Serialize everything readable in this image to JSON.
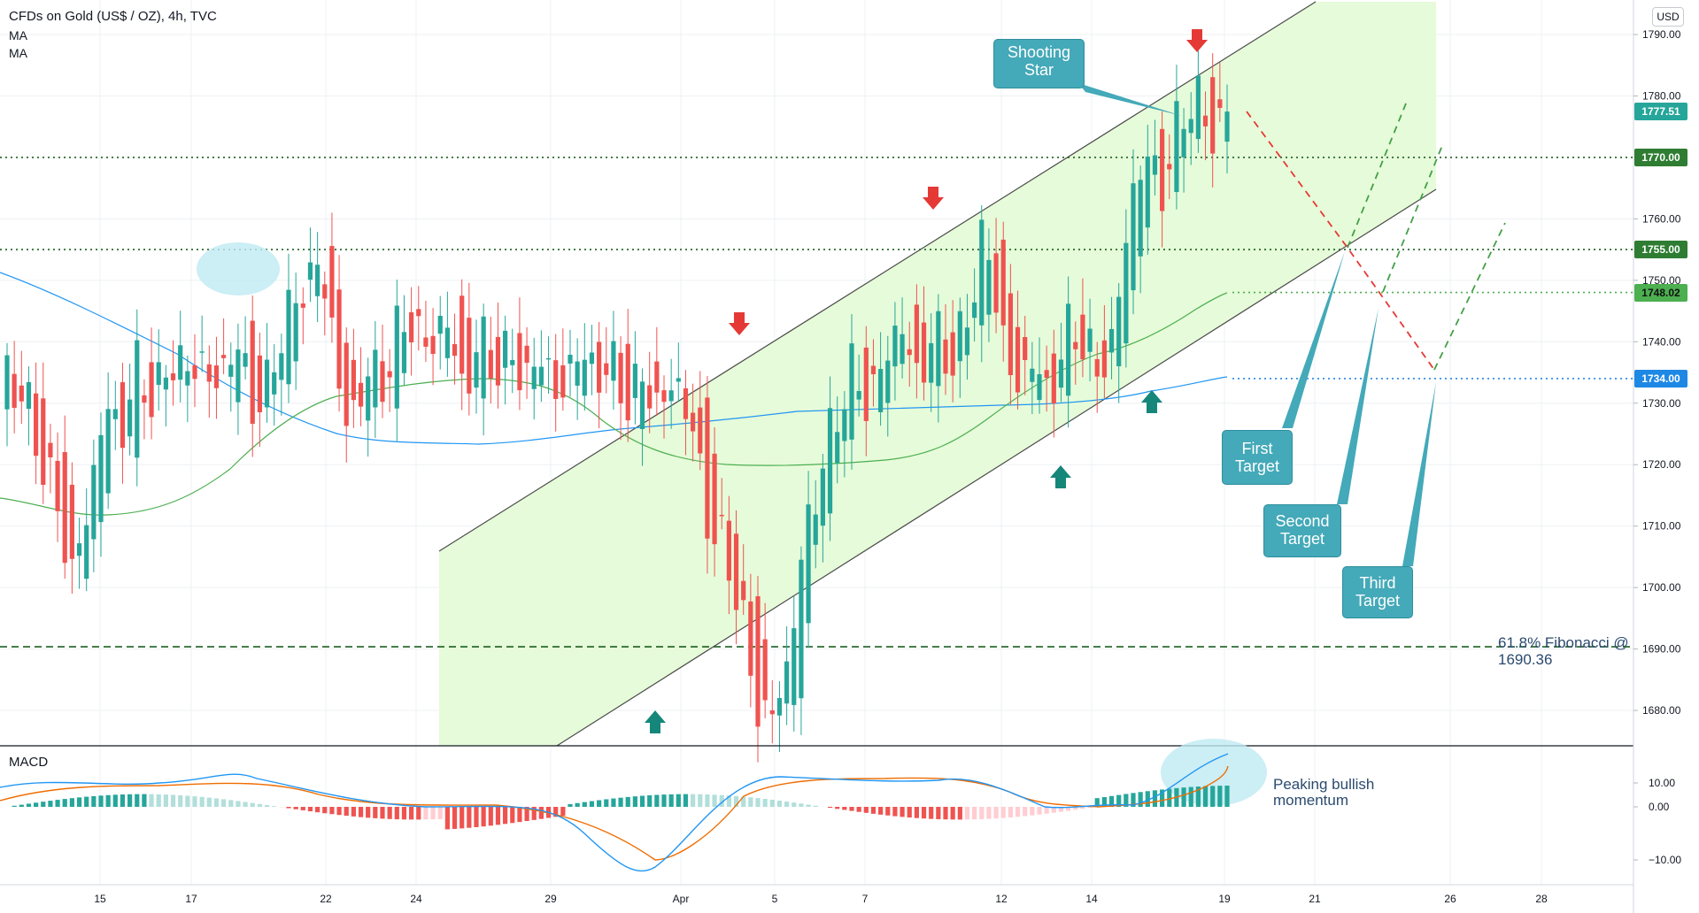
{
  "header": {
    "title": "CFDs on Gold (US$ / OZ), 4h, TVC",
    "indicator1": "MA",
    "indicator2": "MA",
    "currency": "USD"
  },
  "annotations": {
    "shooting_star": "Shooting Star",
    "first_target": "First Target",
    "second_target": "Second Target",
    "third_target": "Third Target",
    "fibonacci": "61.8% Fibonacci @ 1690.36",
    "peaking": "Peaking bullish momentum",
    "macd_label": "MACD"
  },
  "colors": {
    "up": "#26a69a",
    "down": "#ef5350",
    "ma_blue": "#2196f3",
    "ma_green": "#4caf50",
    "channel_fill": "#e6fbd9",
    "callout": "#44a9b8",
    "up_arrow": "#15867a",
    "down_arrow": "#e53935"
  },
  "chart_data": {
    "type": "candlestick",
    "y_axis": {
      "ticks": [
        "1790.00",
        "1780.00",
        "1760.00",
        "1750.00",
        "1740.00",
        "1730.00",
        "1720.00",
        "1710.00",
        "1700.00",
        "1690.00",
        "1680.00"
      ],
      "range": [
        1674,
        1795
      ]
    },
    "x_axis": {
      "ticks": [
        "15",
        "17",
        "22",
        "24",
        "29",
        "Apr",
        "5",
        "7",
        "12",
        "14",
        "19",
        "21",
        "26",
        "28"
      ]
    },
    "price_tags": [
      {
        "label": "1777.51",
        "value": 1777.51,
        "bg": "#26a69a",
        "fg": "#ffffff"
      },
      {
        "label": "1770.00",
        "value": 1770.0,
        "bg": "#2e7d32",
        "fg": "#ffffff"
      },
      {
        "label": "1755.00",
        "value": 1755.0,
        "bg": "#2e7d32",
        "fg": "#ffffff"
      },
      {
        "label": "1748.02",
        "value": 1748.02,
        "bg": "#4caf50",
        "fg": "#111111"
      },
      {
        "label": "1734.00",
        "value": 1734.0,
        "bg": "#1e88e5",
        "fg": "#ffffff"
      }
    ],
    "levels": [
      {
        "value": 1770,
        "style": "dotted",
        "color": "#1b5e20"
      },
      {
        "value": 1755,
        "style": "dotted",
        "color": "#1b5e20"
      },
      {
        "value": 1748.02,
        "style": "dotted",
        "color": "#4caf50"
      },
      {
        "value": 1734,
        "style": "dotted",
        "color": "#1e88e5"
      },
      {
        "value": 1690.36,
        "style": "dashed",
        "color": "#1b5e20"
      }
    ],
    "candle_keys": [
      [
        1,
        1727,
        1736,
        1735,
        1724
      ],
      [
        2,
        1735,
        1731,
        1739,
        1729
      ],
      [
        3,
        1731,
        1721,
        1733,
        1718
      ],
      [
        4,
        1721,
        1716,
        1725,
        1712
      ],
      [
        5,
        1716,
        1702,
        1718,
        1698
      ],
      [
        6,
        1702,
        1712,
        1715,
        1698
      ],
      [
        7,
        1712,
        1732,
        1734,
        1710
      ],
      [
        8,
        1732,
        1725,
        1736,
        1722
      ],
      [
        9,
        1725,
        1735,
        1738,
        1723
      ],
      [
        10,
        1735,
        1731,
        1740,
        1728
      ],
      [
        11,
        1731,
        1738,
        1742,
        1729
      ],
      [
        12,
        1738,
        1734,
        1744,
        1732
      ],
      [
        13,
        1734,
        1738,
        1742,
        1730
      ],
      [
        14,
        1738,
        1733,
        1741,
        1730
      ],
      [
        15,
        1733,
        1740,
        1743,
        1731
      ],
      [
        16,
        1740,
        1731,
        1741,
        1727
      ],
      [
        17,
        1731,
        1733,
        1737,
        1728
      ],
      [
        18,
        1733,
        1742,
        1745,
        1731
      ],
      [
        19,
        1742,
        1748,
        1753,
        1740
      ],
      [
        20,
        1748,
        1755,
        1756,
        1740
      ],
      [
        21,
        1755,
        1741,
        1756,
        1737
      ],
      [
        22,
        1741,
        1724,
        1743,
        1719
      ],
      [
        23,
        1724,
        1738,
        1742,
        1722
      ],
      [
        24,
        1738,
        1731,
        1744,
        1728
      ],
      [
        25,
        1731,
        1742,
        1747,
        1729
      ],
      [
        26,
        1742,
        1745,
        1750,
        1738
      ],
      [
        27,
        1745,
        1737,
        1748,
        1733
      ],
      [
        28,
        1737,
        1745,
        1748,
        1734
      ],
      [
        29,
        1745,
        1733,
        1747,
        1730
      ],
      [
        30,
        1733,
        1740,
        1745,
        1731
      ],
      [
        31,
        1740,
        1735,
        1744,
        1732
      ],
      [
        32,
        1735,
        1740,
        1746,
        1733
      ],
      [
        33,
        1740,
        1733,
        1742,
        1727
      ],
      [
        34,
        1733,
        1738,
        1742,
        1728
      ],
      [
        35,
        1738,
        1731,
        1740,
        1729
      ],
      [
        36,
        1731,
        1740,
        1745,
        1728
      ],
      [
        37,
        1740,
        1733,
        1743,
        1729
      ],
      [
        38,
        1733,
        1739,
        1742,
        1730
      ],
      [
        39,
        1739,
        1730,
        1741,
        1726
      ],
      [
        40,
        1730,
        1733,
        1736,
        1727
      ],
      [
        41,
        1733,
        1731,
        1736,
        1727
      ],
      [
        42,
        1731,
        1734,
        1737,
        1728
      ],
      [
        43,
        1734,
        1727,
        1736,
        1722
      ],
      [
        44,
        1727,
        1713,
        1729,
        1706
      ],
      [
        45,
        1713,
        1707,
        1716,
        1703
      ],
      [
        46,
        1707,
        1697,
        1709,
        1692
      ],
      [
        47,
        1697,
        1682,
        1699,
        1677
      ],
      [
        48,
        1682,
        1680,
        1685,
        1678
      ],
      [
        49,
        1680,
        1686,
        1689,
        1678
      ],
      [
        50,
        1686,
        1709,
        1711,
        1685
      ],
      [
        51,
        1709,
        1720,
        1722,
        1707
      ],
      [
        52,
        1720,
        1727,
        1733,
        1718
      ],
      [
        53,
        1727,
        1736,
        1739,
        1726
      ],
      [
        54,
        1736,
        1731,
        1739,
        1726
      ],
      [
        55,
        1731,
        1737,
        1742,
        1729
      ],
      [
        56,
        1737,
        1743,
        1748,
        1735
      ],
      [
        57,
        1743,
        1735,
        1746,
        1731
      ],
      [
        58,
        1735,
        1741,
        1745,
        1732
      ],
      [
        59,
        1741,
        1736,
        1744,
        1733
      ],
      [
        60,
        1736,
        1745,
        1751,
        1734
      ],
      [
        61,
        1745,
        1757,
        1758,
        1743
      ],
      [
        62,
        1757,
        1744,
        1758,
        1740
      ],
      [
        63,
        1744,
        1733,
        1746,
        1729
      ],
      [
        64,
        1733,
        1738,
        1741,
        1730
      ],
      [
        65,
        1738,
        1729,
        1740,
        1724
      ],
      [
        66,
        1729,
        1743,
        1747,
        1727
      ],
      [
        67,
        1743,
        1741,
        1748,
        1737
      ],
      [
        68,
        1741,
        1734,
        1743,
        1732
      ],
      [
        69,
        1734,
        1742,
        1746,
        1732
      ],
      [
        70,
        1742,
        1762,
        1763,
        1741
      ],
      [
        71,
        1762,
        1770,
        1771,
        1760
      ],
      [
        72,
        1770,
        1766,
        1772,
        1762
      ],
      [
        73,
        1766,
        1776,
        1779,
        1764
      ],
      [
        74,
        1776,
        1779,
        1784,
        1772
      ],
      [
        75,
        1779,
        1775,
        1783,
        1772
      ],
      [
        76,
        1775,
        1778,
        1780,
        1773
      ]
    ],
    "legend_note": "OHLC candles; each row = [index, open, close, high, low]"
  }
}
